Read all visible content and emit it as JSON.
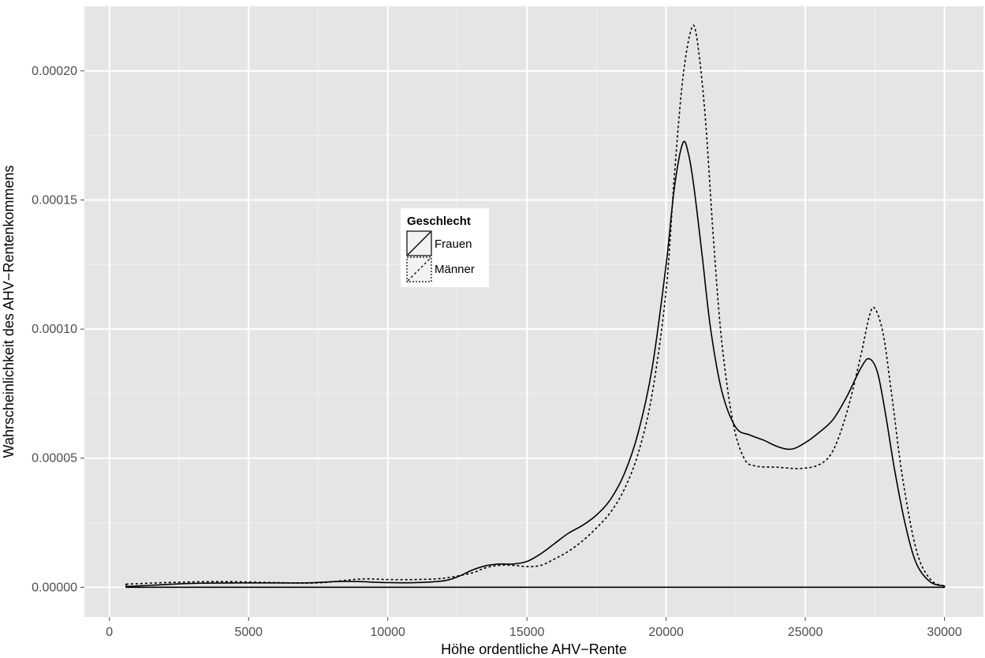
{
  "chart_data": {
    "type": "line",
    "title": "",
    "xlabel": "Höhe ordentliche AHV−Rente",
    "ylabel": "Wahrscheinlichkeit des AHV−Rentenkommens",
    "xlim": [
      -900,
      31400
    ],
    "ylim": [
      -1.15e-05,
      0.000225
    ],
    "x_ticks": [
      0,
      5000,
      10000,
      15000,
      20000,
      25000,
      30000
    ],
    "x_tick_labels": [
      "0",
      "5000",
      "10000",
      "15000",
      "20000",
      "25000",
      "30000"
    ],
    "y_ticks": [
      0,
      5e-05,
      0.0001,
      0.00015,
      0.0002
    ],
    "y_tick_labels": [
      "0.00000",
      "0.00005",
      "0.00010",
      "0.00015",
      "0.00020"
    ],
    "grid": true,
    "legend": {
      "title": "Geschlecht",
      "position": "inside-center-left",
      "entries": [
        "Frauen",
        "Männer"
      ]
    },
    "series": [
      {
        "name": "Frauen",
        "linestyle": "solid",
        "color": "#000000",
        "points": [
          [
            600,
            3e-07
          ],
          [
            1500,
            8e-07
          ],
          [
            3000,
            1.5e-06
          ],
          [
            5000,
            1.7e-06
          ],
          [
            7000,
            1.7e-06
          ],
          [
            8500,
            2.3e-06
          ],
          [
            10000,
            1.8e-06
          ],
          [
            11000,
            1.8e-06
          ],
          [
            12000,
            2.5e-06
          ],
          [
            12500,
            4e-06
          ],
          [
            13000,
            6.5e-06
          ],
          [
            13500,
            8.3e-06
          ],
          [
            14000,
            9e-06
          ],
          [
            14500,
            9e-06
          ],
          [
            15000,
            1e-05
          ],
          [
            15500,
            1.3e-05
          ],
          [
            16000,
            1.7e-05
          ],
          [
            16500,
            2.1e-05
          ],
          [
            17000,
            2.4e-05
          ],
          [
            17500,
            2.8e-05
          ],
          [
            18000,
            3.4e-05
          ],
          [
            18500,
            4.4e-05
          ],
          [
            19000,
            6e-05
          ],
          [
            19500,
            8.5e-05
          ],
          [
            20000,
            0.000125
          ],
          [
            20300,
            0.000155
          ],
          [
            20600,
            0.000172
          ],
          [
            20800,
            0.000168
          ],
          [
            21000,
            0.000155
          ],
          [
            21300,
            0.000128
          ],
          [
            21600,
            0.0001
          ],
          [
            22000,
            7.6e-05
          ],
          [
            22500,
            6.2e-05
          ],
          [
            23000,
            5.9e-05
          ],
          [
            23500,
            5.7e-05
          ],
          [
            24000,
            5.45e-05
          ],
          [
            24500,
            5.35e-05
          ],
          [
            25000,
            5.6e-05
          ],
          [
            25500,
            6e-05
          ],
          [
            26000,
            6.5e-05
          ],
          [
            26500,
            7.4e-05
          ],
          [
            27000,
            8.5e-05
          ],
          [
            27300,
            8.85e-05
          ],
          [
            27600,
            8.3e-05
          ],
          [
            27900,
            6.6e-05
          ],
          [
            28200,
            4.6e-05
          ],
          [
            28600,
            2.4e-05
          ],
          [
            29000,
            9e-06
          ],
          [
            29500,
            2e-06
          ],
          [
            30000,
            5e-07
          ]
        ]
      },
      {
        "name": "Männer",
        "linestyle": "dashed",
        "color": "#000000",
        "points": [
          [
            600,
            1.2e-06
          ],
          [
            2000,
            1.8e-06
          ],
          [
            4000,
            2.2e-06
          ],
          [
            6000,
            1.8e-06
          ],
          [
            7500,
            1.7e-06
          ],
          [
            9000,
            3.2e-06
          ],
          [
            10000,
            3e-06
          ],
          [
            11000,
            3e-06
          ],
          [
            12000,
            3.5e-06
          ],
          [
            13000,
            5.5e-06
          ],
          [
            13500,
            7.5e-06
          ],
          [
            14000,
            8.5e-06
          ],
          [
            14500,
            8.5e-06
          ],
          [
            15000,
            8e-06
          ],
          [
            15500,
            8.5e-06
          ],
          [
            16000,
            1.1e-05
          ],
          [
            16500,
            1.4e-05
          ],
          [
            17000,
            1.8e-05
          ],
          [
            17500,
            2.3e-05
          ],
          [
            18000,
            2.9e-05
          ],
          [
            18500,
            3.8e-05
          ],
          [
            19000,
            5.2e-05
          ],
          [
            19500,
            7.5e-05
          ],
          [
            20000,
            0.000115
          ],
          [
            20300,
            0.00016
          ],
          [
            20600,
            0.000197
          ],
          [
            20900,
            0.000216
          ],
          [
            21100,
            0.000213
          ],
          [
            21400,
            0.000183
          ],
          [
            21700,
            0.000135
          ],
          [
            22000,
            9.5e-05
          ],
          [
            22400,
            6.4e-05
          ],
          [
            22800,
            5e-05
          ],
          [
            23200,
            4.7e-05
          ],
          [
            24000,
            4.65e-05
          ],
          [
            24800,
            4.6e-05
          ],
          [
            25500,
            4.75e-05
          ],
          [
            26000,
            5.3e-05
          ],
          [
            26500,
            6.8e-05
          ],
          [
            27000,
            9e-05
          ],
          [
            27300,
            0.000105
          ],
          [
            27500,
            0.000108
          ],
          [
            27800,
            9.8e-05
          ],
          [
            28100,
            7.5e-05
          ],
          [
            28500,
            4.2e-05
          ],
          [
            29000,
            1.4e-05
          ],
          [
            29500,
            3e-06
          ],
          [
            30000,
            5e-07
          ]
        ]
      }
    ]
  }
}
